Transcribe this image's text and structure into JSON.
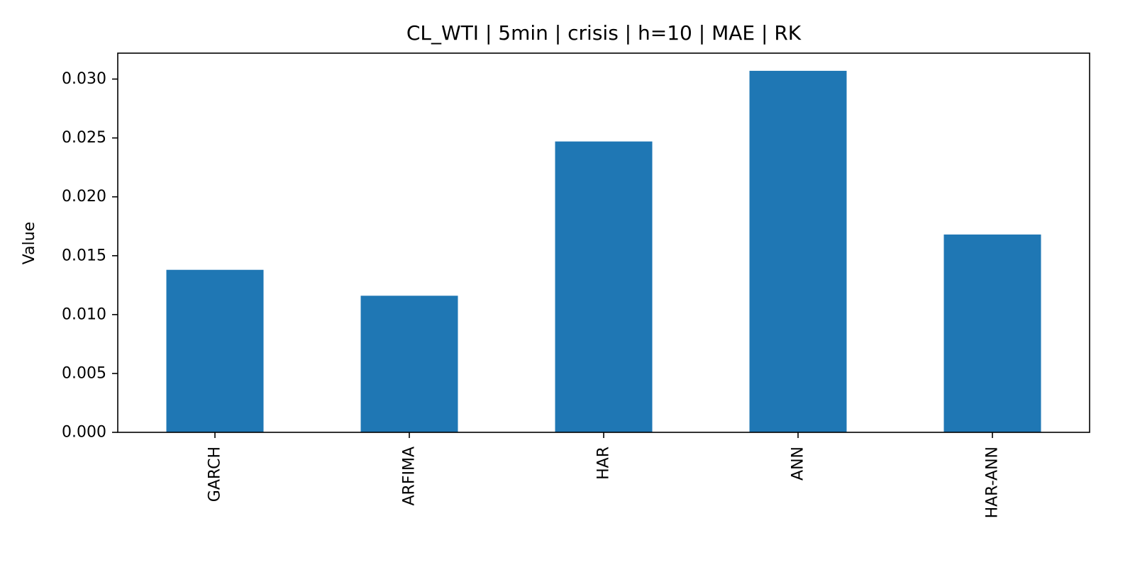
{
  "chart_data": {
    "type": "bar",
    "title": "CL_WTI | 5min | crisis | h=10 | MAE | RK",
    "xlabel": "",
    "ylabel": "Value",
    "categories": [
      "GARCH",
      "ARFIMA",
      "HAR",
      "ANN",
      "HAR-ANN"
    ],
    "values": [
      0.0138,
      0.0116,
      0.0247,
      0.0307,
      0.0168
    ],
    "ylim": [
      0,
      0.0322
    ],
    "yticks": [
      "0.000",
      "0.005",
      "0.010",
      "0.015",
      "0.020",
      "0.025",
      "0.030"
    ],
    "grid": false,
    "legend": "none",
    "bar_color": "#1f77b4"
  }
}
